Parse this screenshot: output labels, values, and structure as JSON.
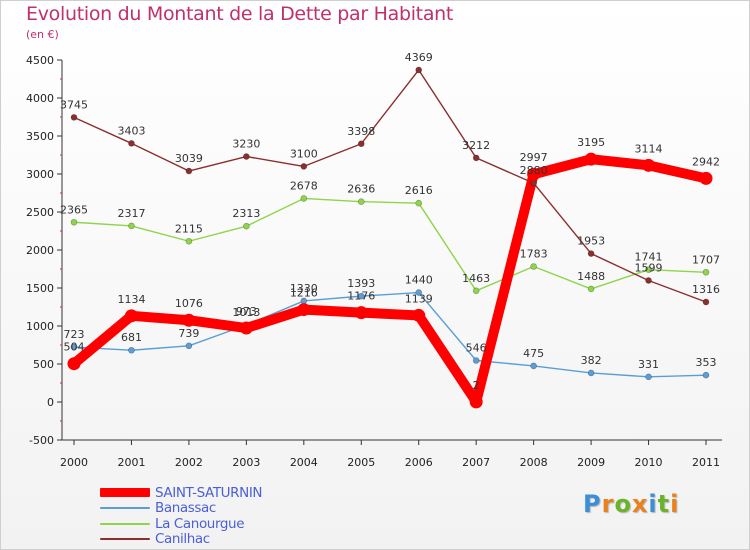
{
  "header": {
    "title": "Evolution du Montant de la Dette par Habitant",
    "unit": "(en €)"
  },
  "brand": {
    "text": "Proxiti",
    "colors": [
      "#3a8fd8",
      "#e8821e",
      "#6ab42c",
      "#e8821e",
      "#3a8fd8",
      "#6ab42c",
      "#e8821e"
    ]
  },
  "chart_data": {
    "type": "line",
    "x": [
      "2000",
      "2001",
      "2002",
      "2003",
      "2004",
      "2005",
      "2006",
      "2007",
      "2008",
      "2009",
      "2010",
      "2011"
    ],
    "ylim": [
      -500,
      4500
    ],
    "yticks": [
      -500,
      0,
      500,
      1000,
      1500,
      2000,
      2500,
      3000,
      3500,
      4000,
      4500
    ],
    "grid": false,
    "legend_position": "bottom-left",
    "series": [
      {
        "name": "SAINT-SATURNIN",
        "color": "#ff0000",
        "values": [
          504,
          1134,
          1076,
          973,
          1216,
          1176,
          1139,
          2,
          2997,
          3195,
          3114,
          2942
        ],
        "labels": [
          "504",
          "1134",
          "1076",
          "973",
          "1216",
          "1176",
          "1139",
          "2",
          "2997",
          "3195",
          "3114",
          "2942"
        ]
      },
      {
        "name": "Banassac",
        "color": "#5b9ed6",
        "values": [
          723,
          681,
          739,
          1013,
          1330,
          1393,
          1440,
          546,
          475,
          382,
          331,
          353
        ],
        "labels": [
          "723",
          "681",
          "739",
          "1013",
          "1330",
          "1393",
          "1440",
          "546",
          "475",
          "382",
          "331",
          "353"
        ]
      },
      {
        "name": "La Canourgue",
        "color": "#8fd44a",
        "values": [
          2365,
          2317,
          2115,
          2313,
          2678,
          2636,
          2616,
          1463,
          1783,
          1488,
          1741,
          1707
        ],
        "labels": [
          "2365",
          "2317",
          "2115",
          "2313",
          "2678",
          "2636",
          "2616",
          "1463",
          "1783",
          "1488",
          "1741",
          "1707"
        ]
      },
      {
        "name": "Canilhac",
        "color": "#8b2e2e",
        "values": [
          3745,
          3403,
          3039,
          3230,
          3100,
          3398,
          4369,
          3212,
          2880,
          1953,
          1599,
          1316
        ],
        "labels": [
          "3745",
          "3403",
          "3039",
          "3230",
          "3100",
          "3398",
          "4369",
          "3212",
          "2880",
          "1953",
          "1599",
          "1316"
        ]
      }
    ]
  }
}
